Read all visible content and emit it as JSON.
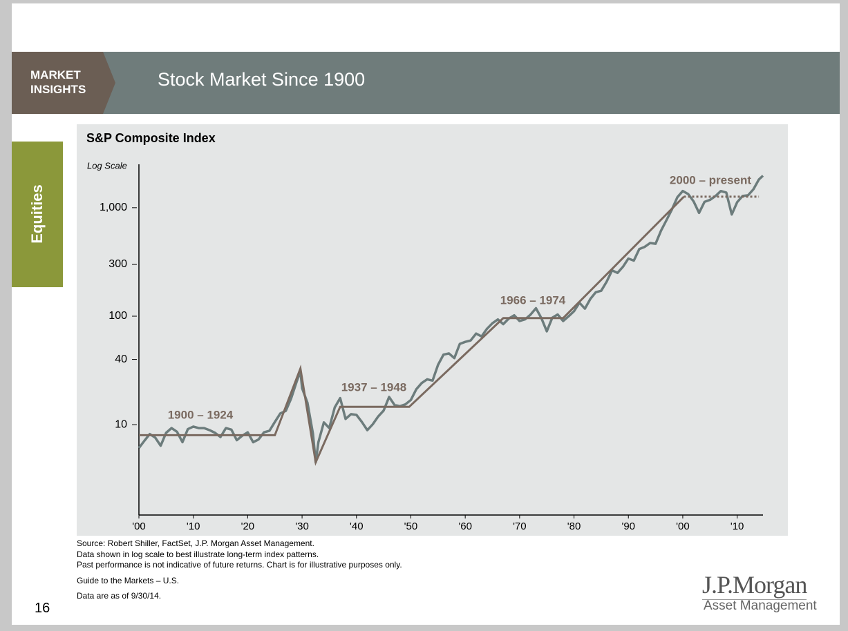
{
  "header": {
    "badge": [
      "MARKET",
      "INSIGHTS"
    ],
    "title": "Stock Market Since 1900"
  },
  "side_tab": "Equities",
  "chart_data": {
    "type": "line",
    "title": "S&P Composite Index",
    "y_axis_label": "Log Scale",
    "log_scale": true,
    "xlim": [
      1900,
      2014.75
    ],
    "ylim": [
      1.47,
      2512
    ],
    "xticks": [
      {
        "value": 1900,
        "label": "'00"
      },
      {
        "value": 1910,
        "label": "'10"
      },
      {
        "value": 1920,
        "label": "'20"
      },
      {
        "value": 1930,
        "label": "'30"
      },
      {
        "value": 1940,
        "label": "'40"
      },
      {
        "value": 1950,
        "label": "'50"
      },
      {
        "value": 1960,
        "label": "'60"
      },
      {
        "value": 1970,
        "label": "'70"
      },
      {
        "value": 1980,
        "label": "'80"
      },
      {
        "value": 1990,
        "label": "'90"
      },
      {
        "value": 2000,
        "label": "'00"
      },
      {
        "value": 2010,
        "label": "'10"
      }
    ],
    "yticks": [
      10,
      40,
      100,
      300,
      {
        "value": 1000,
        "label": "1,000"
      }
    ],
    "series": [
      {
        "color": "#6c7c7c",
        "x": [
          1900,
          1901,
          1902,
          1903,
          1904,
          1905,
          1906,
          1907,
          1908,
          1909,
          1910,
          1911,
          1912,
          1913,
          1914,
          1915,
          1916,
          1917,
          1918,
          1919,
          1920,
          1921,
          1922,
          1923,
          1924,
          1925,
          1926,
          1927,
          1928,
          1929,
          1929.7,
          1930,
          1931,
          1932,
          1932.5,
          1933,
          1934,
          1935,
          1936,
          1937,
          1938,
          1939,
          1940,
          1941,
          1942,
          1943,
          1944,
          1945,
          1946,
          1947,
          1948,
          1949,
          1950,
          1951,
          1952,
          1953,
          1954,
          1955,
          1956,
          1957,
          1958,
          1959,
          1960,
          1961,
          1962,
          1963,
          1964,
          1965,
          1966,
          1967,
          1968,
          1969,
          1970,
          1971,
          1972,
          1973,
          1974,
          1975,
          1976,
          1977,
          1978,
          1979,
          1980,
          1981,
          1982,
          1983,
          1984,
          1985,
          1986,
          1987,
          1988,
          1989,
          1990,
          1991,
          1992,
          1993,
          1994,
          1995,
          1996,
          1997,
          1998,
          1999,
          2000,
          2001,
          2002,
          2003,
          2004,
          2005,
          2006,
          2007,
          2008,
          2009,
          2010,
          2011,
          2012,
          2013,
          2014,
          2014.75
        ],
        "values": [
          6.1,
          7.1,
          8.2,
          7.6,
          6.4,
          8.4,
          9.3,
          8.6,
          6.9,
          9.1,
          9.6,
          9.3,
          9.3,
          8.9,
          8.4,
          7.7,
          9.3,
          9.0,
          7.2,
          7.9,
          8.5,
          6.9,
          7.3,
          8.5,
          8.8,
          10.6,
          12.7,
          13.4,
          17.5,
          24.9,
          31,
          21.7,
          15.9,
          8.3,
          4.5,
          6.9,
          10.5,
          9.3,
          14.4,
          17.6,
          11.3,
          12.5,
          12.3,
          10.6,
          8.9,
          10.1,
          11.9,
          13.5,
          18.0,
          15.2,
          14.8,
          15.4,
          16.9,
          21.2,
          24.2,
          26.2,
          25.5,
          35.6,
          44.2,
          45.4,
          41.1,
          55.6,
          58.0,
          59.7,
          69.1,
          65.1,
          76.5,
          86.1,
          93.3,
          84.5,
          95.0,
          102.0,
          90.3,
          93.5,
          103.3,
          118.4,
          96.1,
          72.6,
          96.9,
          103.8,
          90.3,
          99.7,
          110.9,
          133.0,
          117.3,
          144.3,
          166.4,
          171.6,
          208.2,
          264.5,
          250.5,
          285.4,
          340,
          325.5,
          416.1,
          435.2,
          473,
          465.3,
          614.4,
          766.2,
          963.4,
          1248.8,
          1425.6,
          1335.6,
          1140.2,
          895.8,
          1132.5,
          1181.4,
          1278.7,
          1424.2,
          1378.8,
          865.6,
          1123.6,
          1282.6,
          1300.6,
          1480.4,
          1822.4,
          1972
        ]
      }
    ],
    "trend_color": "#7a6a60",
    "trend_lines": [
      {
        "x": [
          1900,
          1925,
          1929.7,
          1932.5,
          1937,
          1949.7,
          1967,
          1978,
          2000.2
        ],
        "values": [
          8,
          8,
          33,
          4.5,
          14.6,
          14.6,
          96,
          96,
          1264
        ],
        "dashed": false
      },
      {
        "x": [
          2000.2,
          2014
        ],
        "values": [
          1264,
          1264
        ],
        "dashed": true
      }
    ],
    "annotations": [
      "1900 – 1924",
      "1937 – 1948",
      "1966 – 1974",
      "2000 – present"
    ]
  },
  "footnotes": [
    "Source: Robert Shiller, FactSet, J.P. Morgan Asset Management.",
    "Data shown in log scale to best illustrate long-term index patterns.",
    "Past performance is not indicative of future returns. Chart is for illustrative purposes only."
  ],
  "guide": "Guide to the Markets – U.S.",
  "as_of": "Data are as of 9/30/14.",
  "page_number": "16",
  "logo": {
    "name": "J.P.Morgan",
    "sub": "Asset Management"
  }
}
